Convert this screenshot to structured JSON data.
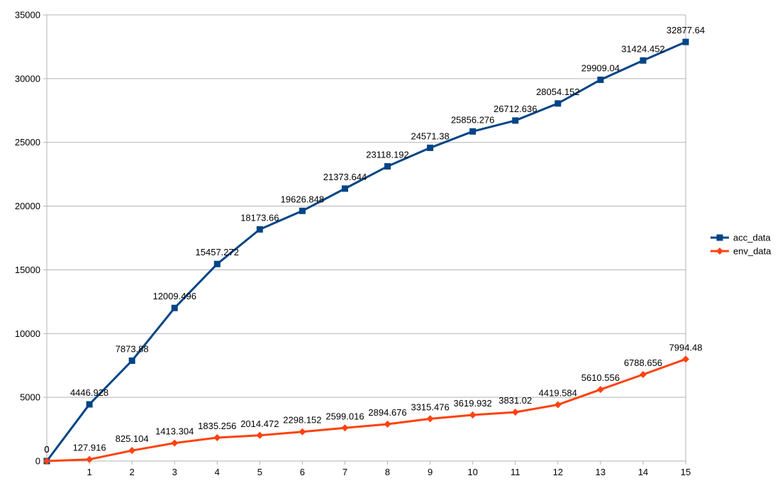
{
  "chart_data": {
    "type": "line",
    "title": "",
    "xlabel": "",
    "ylabel": "",
    "x": [
      0,
      1,
      2,
      3,
      4,
      5,
      6,
      7,
      8,
      9,
      10,
      11,
      12,
      13,
      14,
      15
    ],
    "xlim": [
      0,
      15
    ],
    "ylim": [
      0,
      35000
    ],
    "yticks": [
      0,
      5000,
      10000,
      15000,
      20000,
      25000,
      30000,
      35000
    ],
    "xtick_labels": [
      "1",
      "2",
      "3",
      "4",
      "5",
      "6",
      "7",
      "8",
      "9",
      "10",
      "11",
      "12",
      "13",
      "14",
      "15"
    ],
    "ytick_labels": [
      "0",
      "5000",
      "10000",
      "15000",
      "20000",
      "25000",
      "30000",
      "35000"
    ],
    "grid": true,
    "legend_position": "right",
    "series": [
      {
        "name": "acc_data",
        "color": "#004586",
        "marker": "square",
        "values": [
          0,
          4446.928,
          7873.88,
          12009.496,
          15457.272,
          18173.66,
          19626.848,
          21373.644,
          23118.192,
          24571.38,
          25856.276,
          26712.636,
          28054.152,
          29909.04,
          31424.452,
          32877.64
        ],
        "labels": [
          "0",
          "4446.928",
          "7873.88",
          "12009.496",
          "15457.272",
          "18173.66",
          "19626.848",
          "21373.644",
          "23118.192",
          "24571.38",
          "25856.276",
          "26712.636",
          "28054.152",
          "29909.04",
          "31424.452",
          "32877.64"
        ]
      },
      {
        "name": "env_data",
        "color": "#ff420e",
        "marker": "diamond",
        "values": [
          0,
          127.916,
          825.104,
          1413.304,
          1835.256,
          2014.472,
          2298.152,
          2599.016,
          2894.676,
          3315.476,
          3619.932,
          3831.02,
          4419.584,
          5610.556,
          6788.656,
          7994.48
        ],
        "labels": [
          "0",
          "127.916",
          "825.104",
          "1413.304",
          "1835.256",
          "2014.472",
          "2298.152",
          "2599.016",
          "2894.676",
          "3315.476",
          "3619.932",
          "3831.02",
          "4419.584",
          "5610.556",
          "6788.656",
          "7994.48"
        ]
      }
    ]
  }
}
